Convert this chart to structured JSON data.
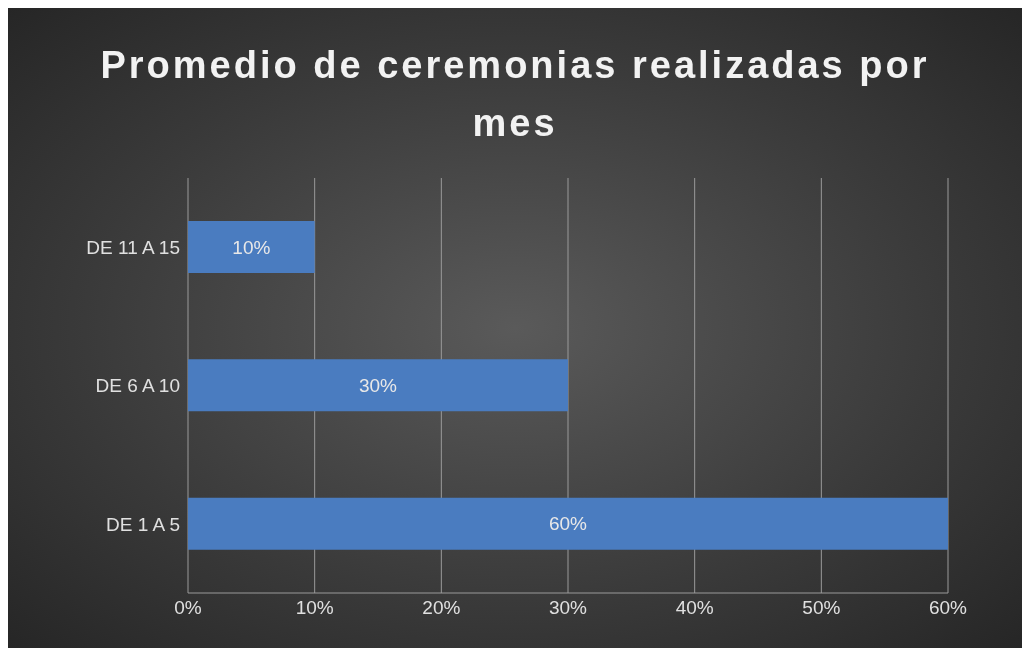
{
  "chart_data": {
    "type": "bar",
    "orientation": "horizontal",
    "title": "Promedio de ceremonias realizadas por mes",
    "categories": [
      "DE 11 A 15",
      "DE 6 A 10",
      "DE 1 A 5"
    ],
    "values": [
      10,
      30,
      60
    ],
    "value_labels": [
      "10%",
      "30%",
      "60%"
    ],
    "color": "#4a7cc0",
    "xlim": [
      0,
      60
    ],
    "xticks": [
      {
        "value": 0,
        "label": "0%"
      },
      {
        "value": 10,
        "label": "10%"
      },
      {
        "value": 20,
        "label": "20%"
      },
      {
        "value": 30,
        "label": "30%"
      },
      {
        "value": 40,
        "label": "40%"
      },
      {
        "value": 50,
        "label": "50%"
      },
      {
        "value": 60,
        "label": "60%"
      }
    ],
    "grid": "x",
    "legend": false
  }
}
